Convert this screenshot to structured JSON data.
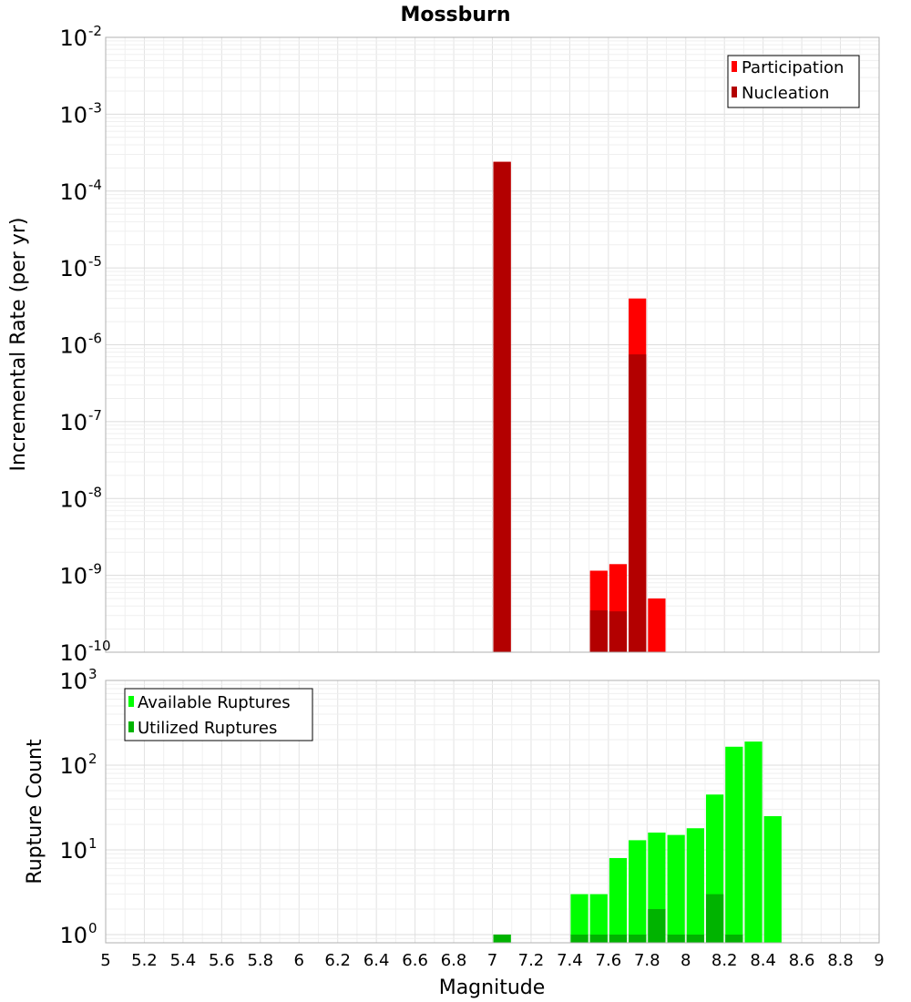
{
  "title": "Mossburn",
  "xlabel": "Magnitude",
  "x_ticks": [
    "5",
    "5.2",
    "5.4",
    "5.6",
    "5.8",
    "6",
    "6.2",
    "6.4",
    "6.6",
    "6.8",
    "7",
    "7.2",
    "7.4",
    "7.6",
    "7.8",
    "8",
    "8.2",
    "8.4",
    "8.6",
    "8.8",
    "9"
  ],
  "chart_data": [
    {
      "type": "bar",
      "ylabel": "Incremental Rate (per yr)",
      "y_scale": "log",
      "xlim": [
        5,
        9
      ],
      "ylim": [
        1e-10,
        0.01
      ],
      "y_tick_exponents": [
        -10,
        -9,
        -8,
        -7,
        -6,
        -5,
        -4,
        -3,
        -2
      ],
      "bar_width": 0.1,
      "grid": true,
      "legend_position": "top-right",
      "series": [
        {
          "name": "Participation",
          "color": "#ff0000",
          "x": [
            7.05,
            7.55,
            7.65,
            7.75,
            7.85
          ],
          "values": [
            0.00024,
            1.15e-09,
            1.4e-09,
            4e-06,
            5e-10
          ]
        },
        {
          "name": "Nucleation",
          "color": "#b30000",
          "x": [
            7.05,
            7.55,
            7.65,
            7.75
          ],
          "values": [
            0.00024,
            3.5e-10,
            3.4e-10,
            7.5e-07
          ]
        }
      ]
    },
    {
      "type": "bar",
      "ylabel": "Rupture Count",
      "y_scale": "log",
      "xlim": [
        5,
        9
      ],
      "ylim": [
        0.8,
        1000
      ],
      "y_tick_exponents": [
        0,
        1,
        2,
        3
      ],
      "bar_width": 0.1,
      "grid": true,
      "legend_position": "top-left",
      "series": [
        {
          "name": "Available Ruptures",
          "color": "#00ff00",
          "x": [
            7.05,
            7.45,
            7.55,
            7.65,
            7.75,
            7.85,
            7.95,
            8.05,
            8.15,
            8.25,
            8.35,
            8.45
          ],
          "values": [
            1,
            3,
            3,
            8,
            13,
            16,
            15,
            18,
            45,
            165,
            190,
            25
          ]
        },
        {
          "name": "Utilized Ruptures",
          "color": "#00b300",
          "x": [
            7.05,
            7.45,
            7.55,
            7.65,
            7.75,
            7.85,
            7.95,
            8.05,
            8.15,
            8.25
          ],
          "values": [
            1,
            1,
            1,
            1,
            1,
            2,
            1,
            1,
            3,
            1
          ]
        }
      ]
    }
  ]
}
